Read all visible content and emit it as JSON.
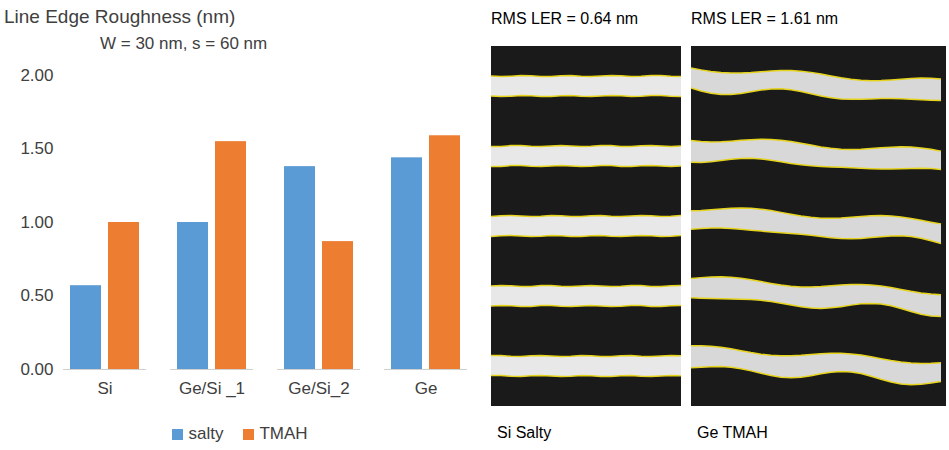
{
  "chart_data": {
    "type": "bar",
    "title": "Line Edge Roughness (nm)",
    "annotations": [
      "W  = 30 nm, s = 60 nm"
    ],
    "categories": [
      "Si",
      "Ge/Si _1",
      "Ge/Si_2",
      "Ge"
    ],
    "series": [
      {
        "name": "salty",
        "color": "#5b9bd5",
        "values": [
          0.57,
          1.0,
          1.38,
          1.44
        ]
      },
      {
        "name": "TMAH",
        "color": "#ed7d31",
        "values": [
          1.0,
          1.55,
          0.87,
          1.59
        ]
      }
    ],
    "ylim": [
      0,
      2
    ],
    "yticks": [
      {
        "value": 0,
        "label": "0.00"
      },
      {
        "value": 0.5,
        "label": "0.50"
      },
      {
        "value": 1,
        "label": "1.00"
      },
      {
        "value": 1.5,
        "label": "1.50"
      },
      {
        "value": 2,
        "label": "2.00"
      }
    ],
    "grid": false,
    "legend": "bottom"
  },
  "images": [
    {
      "title": "RMS LER = 0.64 nm",
      "caption": "Si Salty"
    },
    {
      "title": "RMS LER = 1.61 nm",
      "caption": "Ge TMAH"
    }
  ]
}
